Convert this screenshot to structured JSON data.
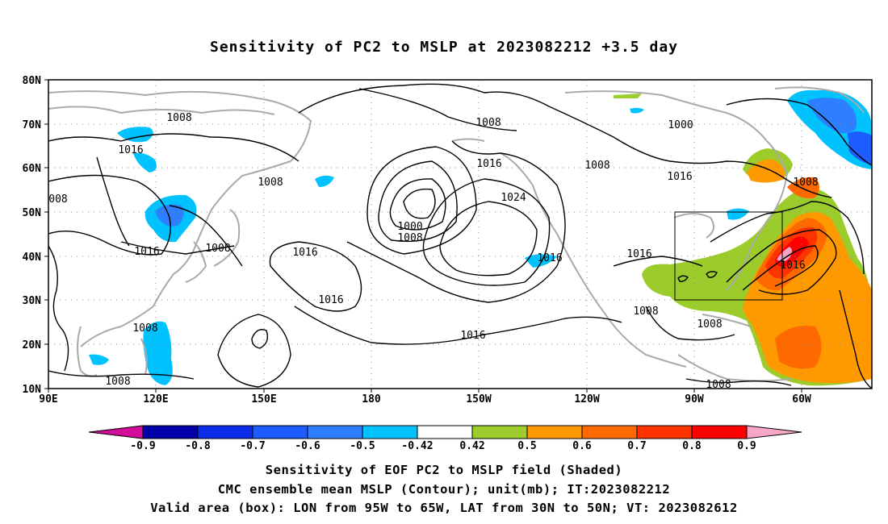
{
  "title": "Sensitivity of PC2 to MSLP at 2023082212 +3.5 day",
  "lat_labels": [
    "80N",
    "70N",
    "60N",
    "50N",
    "40N",
    "30N",
    "20N",
    "10N"
  ],
  "lon_labels": [
    "90E",
    "120E",
    "150E",
    "180",
    "150W",
    "120W",
    "90W",
    "60W"
  ],
  "contour_labels": [
    {
      "text": "1008"
    },
    {
      "text": "1016"
    },
    {
      "text": "008"
    },
    {
      "text": "1016"
    },
    {
      "text": "1008"
    },
    {
      "text": "1008"
    },
    {
      "text": "1016"
    },
    {
      "text": "1016"
    },
    {
      "text": "1008"
    },
    {
      "text": "1008"
    },
    {
      "text": "1016"
    },
    {
      "text": "1024"
    },
    {
      "text": "1000"
    },
    {
      "text": "1008"
    },
    {
      "text": "1016"
    },
    {
      "text": "1016"
    },
    {
      "text": "1016"
    },
    {
      "text": "1008"
    },
    {
      "text": "1000"
    },
    {
      "text": "1016"
    },
    {
      "text": "1008"
    },
    {
      "text": "1016"
    },
    {
      "text": "1008"
    },
    {
      "text": "1008"
    },
    {
      "text": "1008"
    }
  ],
  "colorbar": {
    "labels": [
      "-0.9",
      "-0.8",
      "-0.7",
      "-0.6",
      "-0.5",
      "-0.42",
      "0.42",
      "0.5",
      "0.6",
      "0.7",
      "0.8",
      "0.9"
    ],
    "colors": [
      "#0000a8",
      "#0a2be8",
      "#1e5cff",
      "#2d7fff",
      "#00c2ff",
      "#ffffff",
      "#9ccc2c",
      "#ff9900",
      "#ff6a00",
      "#ff3300",
      "#ff0000"
    ],
    "low_color": "#d40c9c",
    "high_color": "#f7a6c8"
  },
  "captions": [
    "Sensitivity of EOF PC2 to MSLP field (Shaded)",
    "CMC ensemble mean MSLP (Contour); unit(mb); IT:2023082212",
    "Valid area (box): LON from 95W to 65W, LAT from 30N to 50N; VT: 2023082612"
  ],
  "valid_box": {
    "lon": [
      "95W",
      "65W"
    ],
    "lat": [
      "30N",
      "50N"
    ]
  }
}
